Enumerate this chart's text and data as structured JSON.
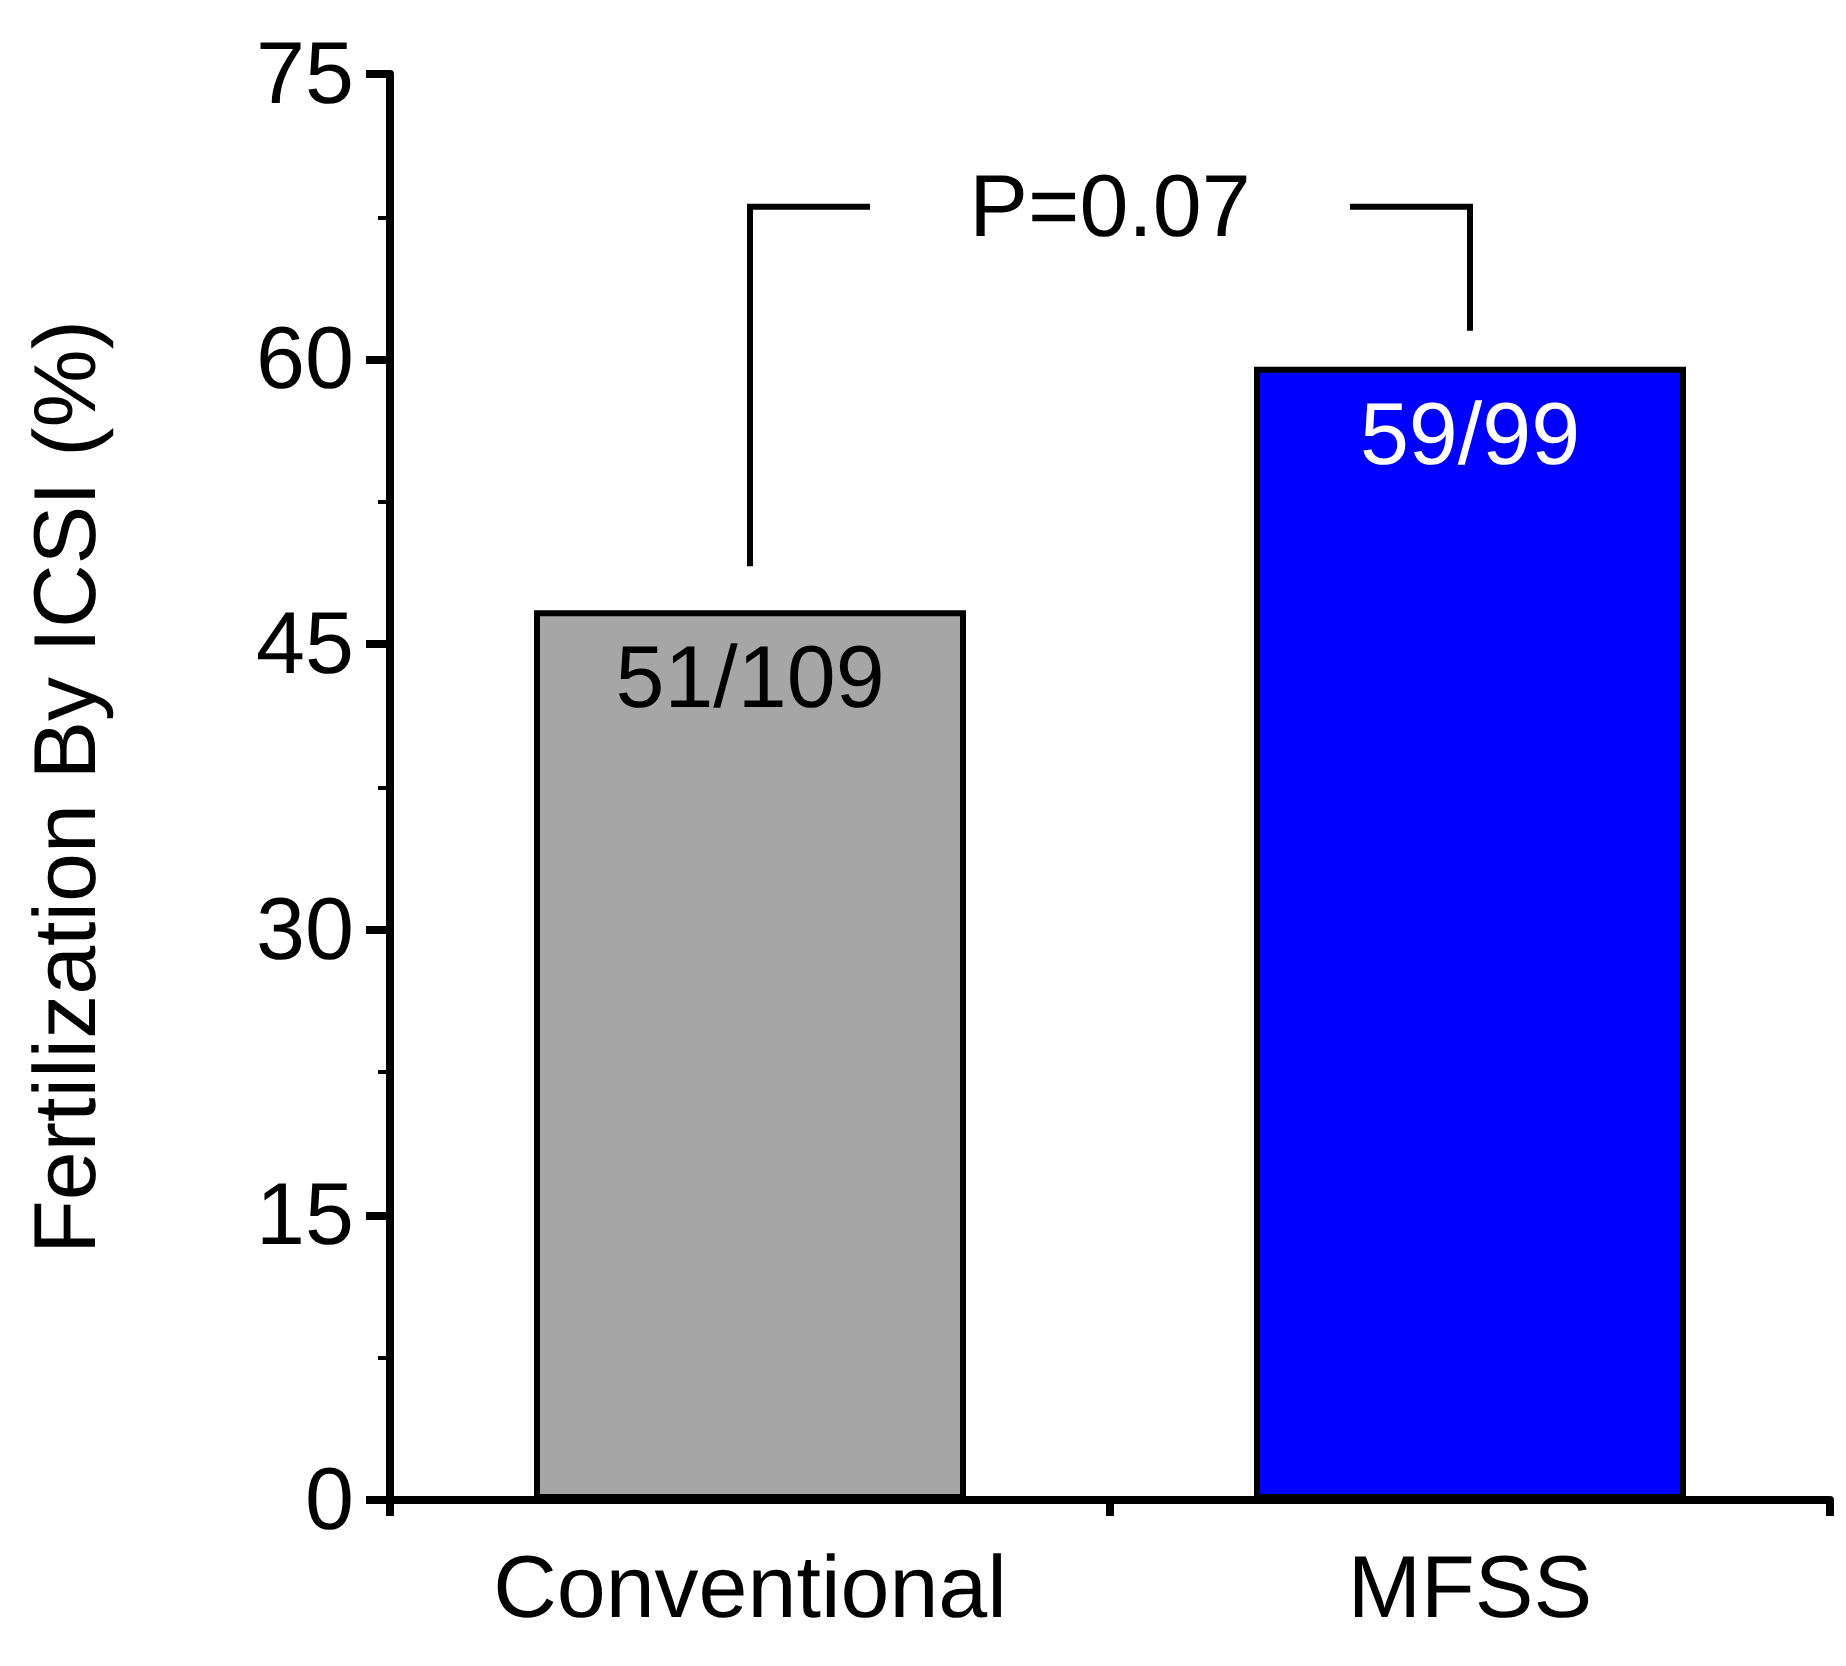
{
  "chart_data": {
    "type": "bar",
    "ylabel": "Fertilization By ICSI (%)",
    "categories": [
      "Conventional",
      "MFSS"
    ],
    "values": [
      46.8,
      59.6
    ],
    "colors": [
      "#a6a6a6",
      "#0000ff"
    ],
    "value_labels": [
      "51/109",
      "59/99"
    ],
    "ylim": [
      0,
      75
    ],
    "yticks": [
      0,
      15,
      30,
      45,
      60,
      75
    ],
    "grid": false,
    "annotations": [
      "P=0.07"
    ]
  }
}
